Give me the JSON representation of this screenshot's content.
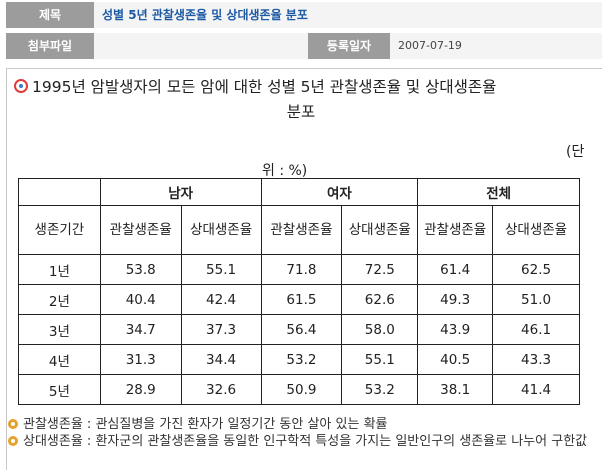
{
  "meta": {
    "title_label": "제목",
    "title_value": "성별 5년 관찰생존율 및 상대생존율 분포",
    "attach_label": "첨부파일",
    "date_label": "등록일자",
    "date_value": "2007-07-19"
  },
  "content": {
    "heading": "1995년 암발생자의 모든 암에 대한 성별 5년 관찰생존율 및 상대생존율",
    "heading_cont": "분포",
    "unit_line1": "(단",
    "unit_line2": "위 : %)"
  },
  "table": {
    "group_headers": [
      "남자",
      "여자",
      "전체"
    ],
    "row_header": "생존기간",
    "sub_headers": [
      "관찰생존율",
      "상대생존율",
      "관찰생존율",
      "상대생존율",
      "관찰생존율",
      "상대생존율"
    ],
    "rows": [
      {
        "period": "1년",
        "values": [
          "53.8",
          "55.1",
          "71.8",
          "72.5",
          "61.4",
          "62.5"
        ]
      },
      {
        "period": "2년",
        "values": [
          "40.4",
          "42.4",
          "61.5",
          "62.6",
          "49.3",
          "51.0"
        ]
      },
      {
        "period": "3년",
        "values": [
          "34.7",
          "37.3",
          "56.4",
          "58.0",
          "43.9",
          "46.1"
        ]
      },
      {
        "period": "4년",
        "values": [
          "31.3",
          "34.4",
          "53.2",
          "55.1",
          "40.5",
          "43.3"
        ]
      },
      {
        "period": "5년",
        "values": [
          "28.9",
          "32.6",
          "50.9",
          "53.2",
          "38.1",
          "41.4"
        ]
      }
    ]
  },
  "notes": [
    "관찰생존율 : 관심질병을 가진 환자가 일정기간 동안 살아 있는 확률",
    "상대생존율 : 환자군의 관찰생존율을 동일한 인구학적 특성을 가지는 일반인구의 생존율로 나누어 구한값"
  ],
  "colors": {
    "accent": "#1d5aa5",
    "label_bg": "#9c9c9c",
    "bullet": "#e5a12c"
  },
  "icons": [
    "circle-bullet-icon",
    "note-bullet-icon"
  ]
}
